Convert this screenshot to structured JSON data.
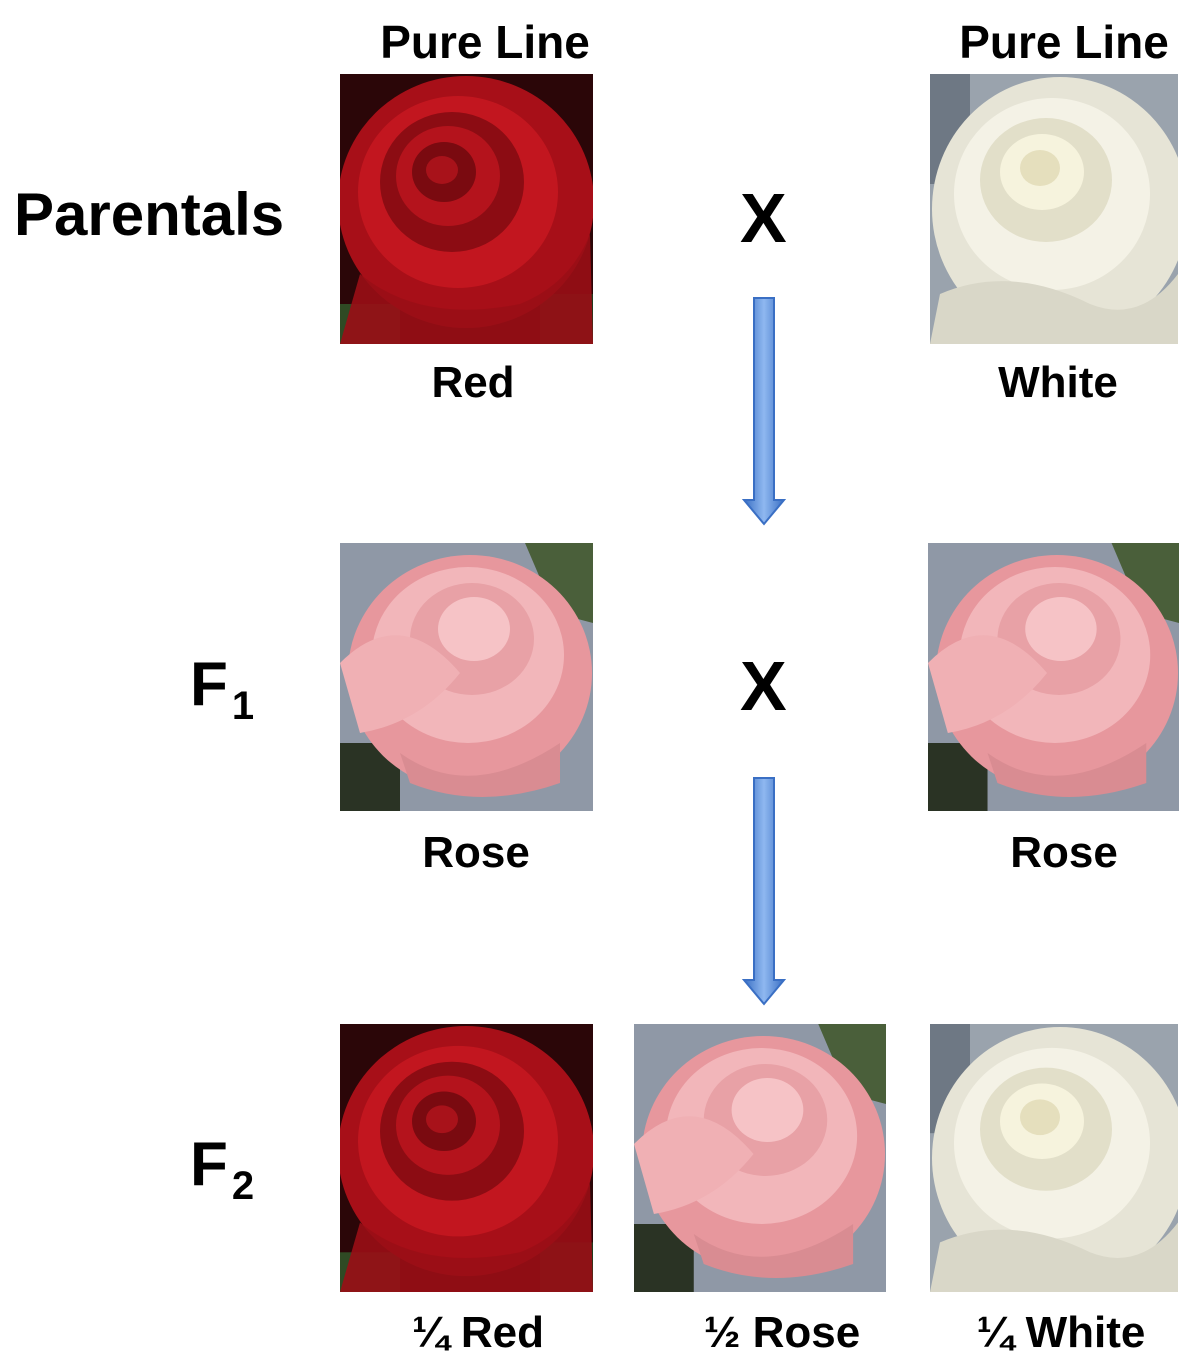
{
  "headers": {
    "left": "Pure Line",
    "right": "Pure Line"
  },
  "rows": {
    "parentals": {
      "label": "Parentals",
      "cross": "X",
      "left_caption": "Red",
      "right_caption": "White"
    },
    "f1": {
      "label_main": "F",
      "label_sub": "1",
      "cross": "X",
      "left_caption": "Rose",
      "right_caption": "Rose"
    },
    "f2": {
      "label_main": "F",
      "label_sub": "2",
      "captions": [
        "¼ Red",
        "½  Rose",
        "¼ White"
      ]
    }
  },
  "colors": {
    "red_rose": "#b3111a",
    "pink_rose": "#eaa1a6",
    "white_rose": "#f1efe3",
    "arrow_blue": "#5b8fdb"
  },
  "icons": {
    "arrow": "down-arrow-icon",
    "rose": "rose-photo"
  }
}
